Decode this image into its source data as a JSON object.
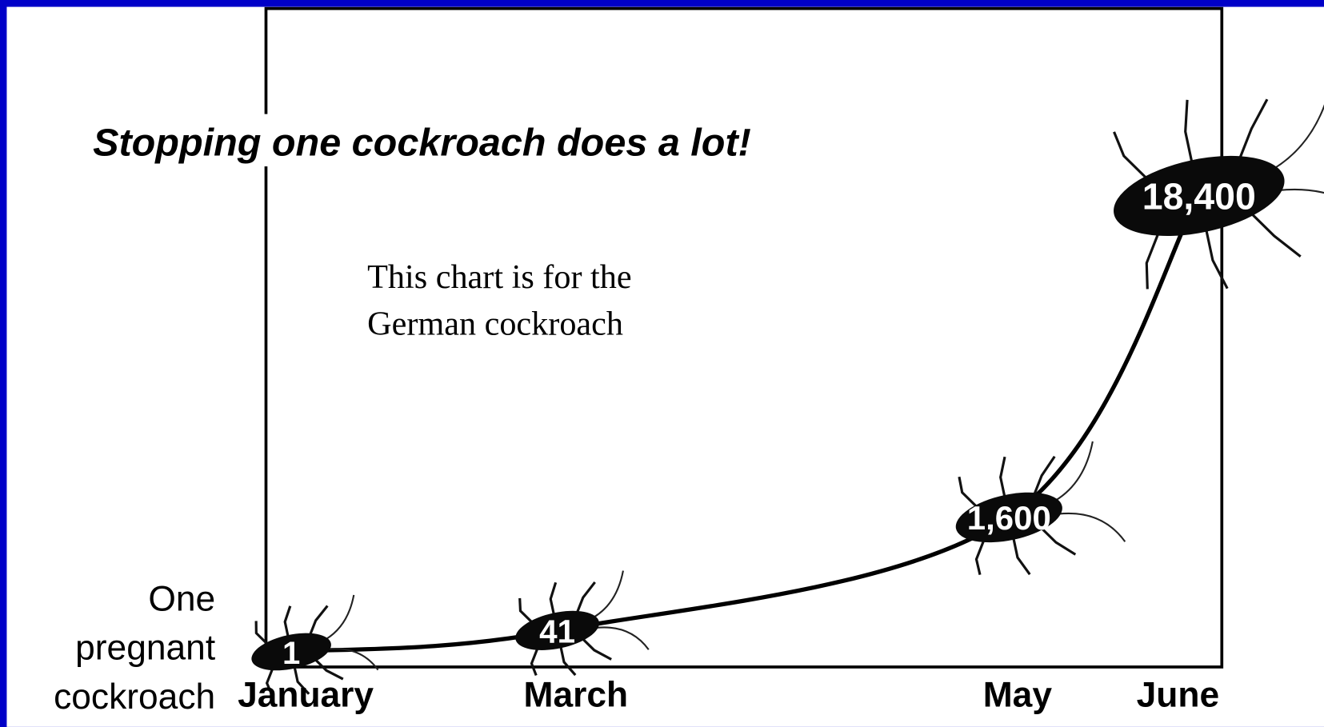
{
  "chart_data": {
    "type": "line",
    "title": "Stopping one cockroach does a lot!",
    "annotation": [
      "This chart is for the",
      "German cockroach"
    ],
    "start_label": [
      "One",
      "pregnant",
      "cockroach"
    ],
    "categories": [
      "January",
      "March",
      "May",
      "June"
    ],
    "values": [
      1,
      41,
      1600,
      18400
    ],
    "value_labels": [
      "1",
      "41",
      "1,600",
      "18,400"
    ],
    "color": "#000000"
  }
}
